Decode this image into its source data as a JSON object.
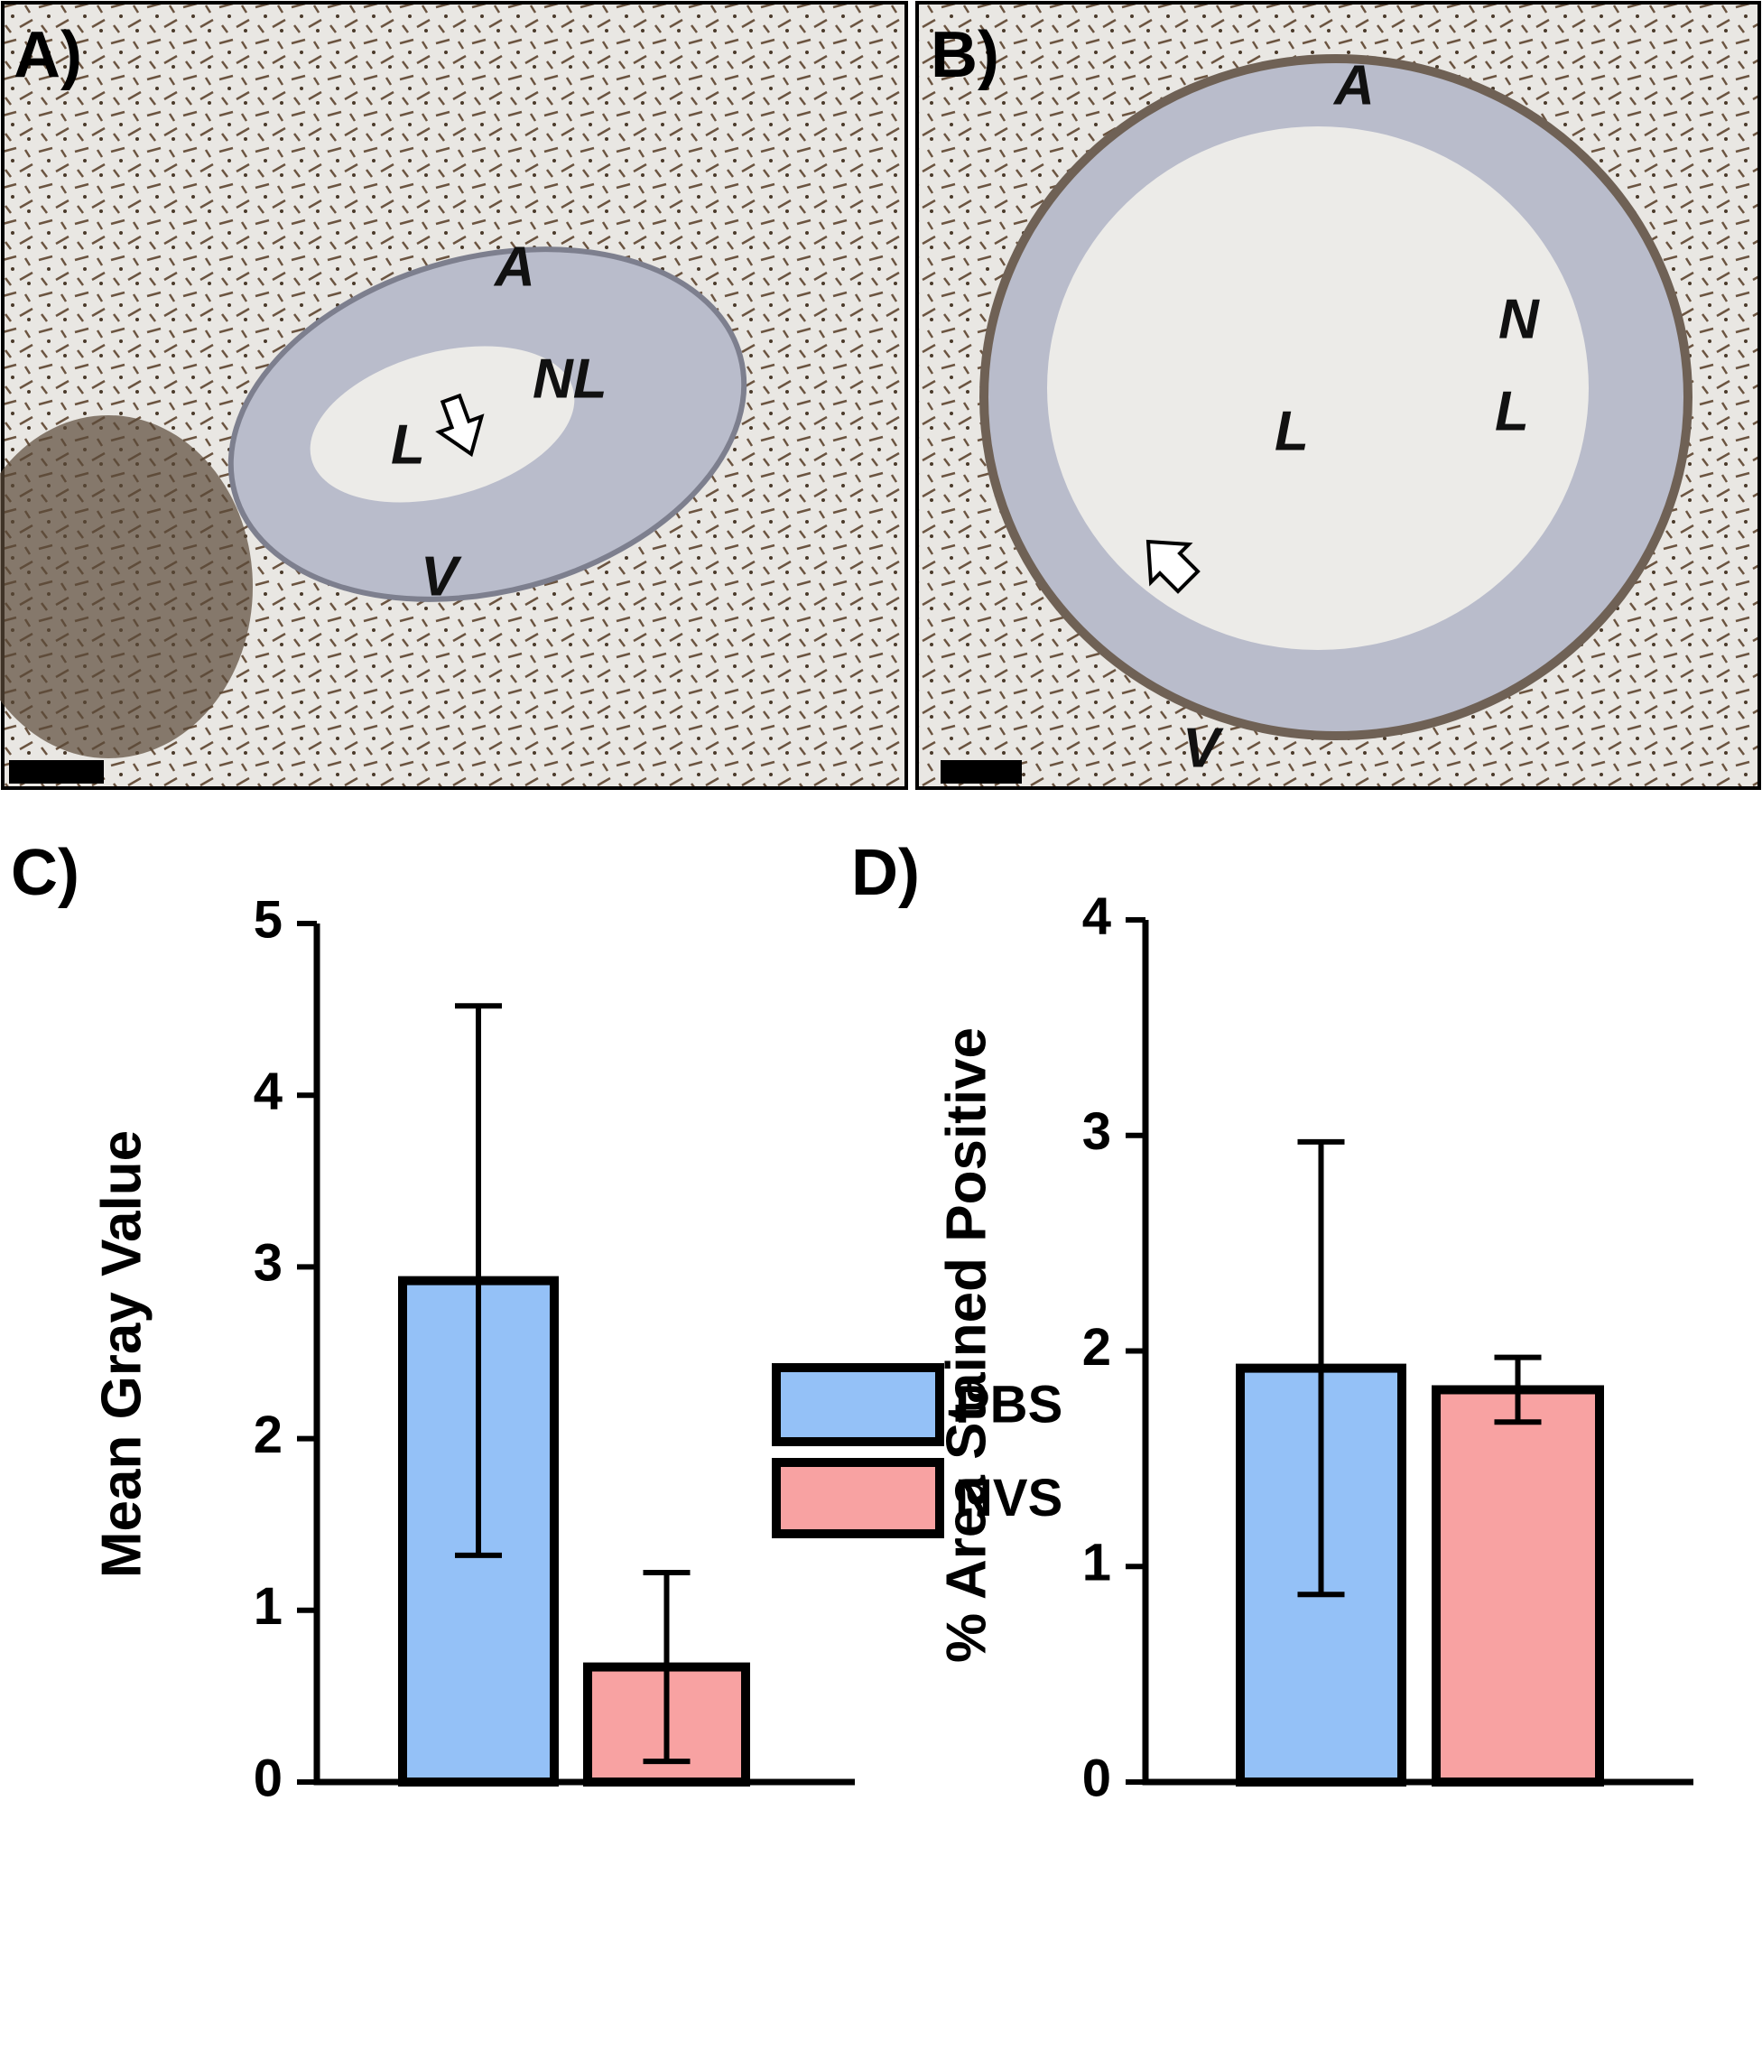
{
  "panels": {
    "a": {
      "label": "A)",
      "annotations": [
        "A",
        "NL",
        "L",
        "V"
      ]
    },
    "b": {
      "label": "B)",
      "annotations": [
        "A",
        "N",
        "L",
        "L",
        "V"
      ]
    }
  },
  "legend": {
    "items": [
      {
        "name": "PBS",
        "color": "#94c1f7"
      },
      {
        "name": "NVS",
        "color": "#f8a2a2"
      }
    ]
  },
  "chart_data": [
    {
      "type": "bar",
      "panel_label": "C)",
      "y_label": "Mean Gray Value",
      "values": [
        2.92,
        0.67
      ],
      "errors": [
        1.6,
        0.55
      ],
      "ylim": [
        0,
        5
      ],
      "yticks": [
        0,
        1,
        2,
        3,
        4,
        5
      ]
    },
    {
      "type": "bar",
      "panel_label": "D)",
      "y_label": "% Area Stained Positive",
      "values": [
        1.92,
        1.82
      ],
      "errors": [
        1.05,
        0.15
      ],
      "ylim": [
        0,
        4
      ],
      "yticks": [
        0,
        1,
        2,
        3,
        4
      ]
    }
  ]
}
